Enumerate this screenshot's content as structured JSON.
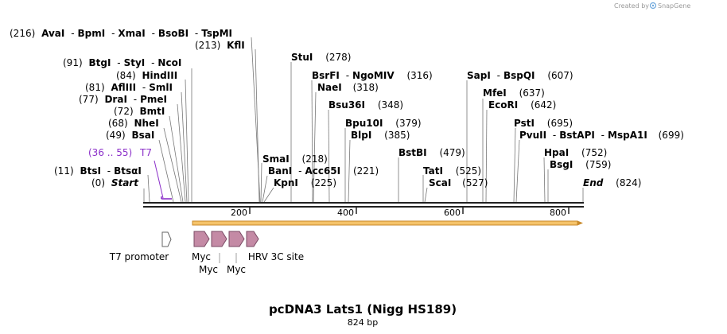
{
  "header": {
    "credit_prefix": "Created by",
    "credit_brand": "SnapGene"
  },
  "map": {
    "title": "pcDNA3 Lats1 (Nigg HS189)",
    "length_label": "824 bp",
    "ticks": [
      "200",
      "400",
      "600",
      "800"
    ],
    "sites": [
      {
        "pos": "(216)",
        "names": [
          "AvaI",
          "BpmI",
          "XmaI",
          "BsoBI",
          "TspMI"
        ]
      },
      {
        "pos": "(213)",
        "names": [
          "KflI"
        ],
        "pos_first": true
      },
      {
        "pos": "(91)",
        "names": [
          "BtgI",
          "StyI",
          "NcoI"
        ]
      },
      {
        "pos": "(84)",
        "names": [
          "HindIII"
        ]
      },
      {
        "pos": "(81)",
        "names": [
          "AflIII",
          "SmlI"
        ]
      },
      {
        "pos": "(77)",
        "names": [
          "DraI",
          "PmeI"
        ]
      },
      {
        "pos": "(72)",
        "names": [
          "BmtI"
        ]
      },
      {
        "pos": "(68)",
        "names": [
          "NheI"
        ]
      },
      {
        "pos": "(49)",
        "names": [
          "BsaI"
        ]
      },
      {
        "pos": "(11)",
        "names": [
          "BtsI",
          "BtsαI"
        ]
      },
      {
        "pos": "(0)",
        "names": [
          "Start"
        ],
        "marker": true
      },
      {
        "pos": "(278)",
        "names": [
          "StuI"
        ]
      },
      {
        "pos": "(316)",
        "names": [
          "BsrFI",
          "NgoMIV"
        ]
      },
      {
        "pos": "(318)",
        "names": [
          "NaeI"
        ]
      },
      {
        "pos": "(348)",
        "names": [
          "Bsu36I"
        ]
      },
      {
        "pos": "(379)",
        "names": [
          "Bpu10I"
        ]
      },
      {
        "pos": "(385)",
        "names": [
          "BlpI"
        ]
      },
      {
        "pos": "(218)",
        "names": [
          "SmaI"
        ]
      },
      {
        "pos": "(221)",
        "names": [
          "BanI",
          "Acc65I"
        ]
      },
      {
        "pos": "(225)",
        "names": [
          "KpnI"
        ]
      },
      {
        "pos": "(479)",
        "names": [
          "BstBI"
        ]
      },
      {
        "pos": "(525)",
        "names": [
          "TatI"
        ]
      },
      {
        "pos": "(527)",
        "names": [
          "ScaI"
        ]
      },
      {
        "pos": "(607)",
        "names": [
          "SapI",
          "BspQI"
        ]
      },
      {
        "pos": "(637)",
        "names": [
          "MfeI"
        ]
      },
      {
        "pos": "(642)",
        "names": [
          "EcoRI"
        ]
      },
      {
        "pos": "(695)",
        "names": [
          "PstI"
        ]
      },
      {
        "pos": "(699)",
        "names": [
          "PvuII",
          "BstAPI",
          "MspA1I"
        ]
      },
      {
        "pos": "(752)",
        "names": [
          "HpaI"
        ]
      },
      {
        "pos": "(759)",
        "names": [
          "BsgI"
        ]
      },
      {
        "pos": "(824)",
        "names": [
          "End"
        ],
        "marker": true
      }
    ],
    "primer": {
      "range": "(36 .. 55)",
      "name": "T7"
    },
    "features": [
      "T7 promoter",
      "Myc",
      "Myc",
      "Myc",
      "HRV 3C site"
    ],
    "colors": {
      "primer": "#8b2fc9",
      "orf_fill": "#f5c36a",
      "orf_stroke": "#c98a2b",
      "feature_fill": "#c48aa5",
      "feature_stroke": "#7a4a64"
    }
  }
}
